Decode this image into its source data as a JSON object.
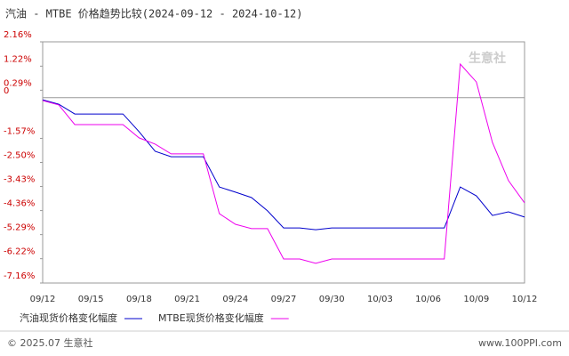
{
  "chart_data": {
    "type": "line",
    "title": "汽油 - MTBE 价格趋势比较(2024-09-12 - 2024-10-12)",
    "categories": [
      "09/12",
      null,
      null,
      "09/15",
      null,
      null,
      "09/18",
      null,
      null,
      "09/21",
      null,
      null,
      "09/24",
      null,
      null,
      "09/27",
      null,
      null,
      "09/30",
      null,
      null,
      "10/03",
      null,
      null,
      "10/06",
      null,
      null,
      "10/09",
      null,
      null,
      "10/12"
    ],
    "series": [
      {
        "name": "汽油现货价格变化幅度",
        "color": "#0000cc",
        "values": [
          -0.08,
          -0.25,
          -0.63,
          -0.63,
          -0.63,
          -0.63,
          -1.31,
          -2.07,
          -2.28,
          -2.28,
          -2.28,
          -3.45,
          -3.65,
          -3.86,
          -4.37,
          -5.03,
          -5.03,
          -5.1,
          -5.03,
          -5.03,
          -5.03,
          -5.03,
          -5.03,
          -5.03,
          -5.03,
          -5.03,
          -3.45,
          -3.79,
          -4.55,
          -4.41,
          -4.61
        ]
      },
      {
        "name": "MTBE现货价格变化幅度",
        "color": "#ee00ee",
        "values": [
          -0.11,
          -0.28,
          -1.04,
          -1.04,
          -1.04,
          -1.04,
          -1.55,
          -1.79,
          -2.17,
          -2.17,
          -2.17,
          -4.48,
          -4.89,
          -5.06,
          -5.06,
          -6.23,
          -6.23,
          -6.4,
          -6.23,
          -6.23,
          -6.23,
          -6.23,
          -6.23,
          -6.23,
          -6.23,
          -6.23,
          1.3,
          0.61,
          -1.73,
          -3.2,
          -4.06
        ]
      }
    ],
    "ylim": [
      -7.16,
      2.16
    ],
    "yticks": [
      {
        "value": 2.16,
        "label": "2.16%"
      },
      {
        "value": 1.22,
        "label": "1.22%"
      },
      {
        "value": 0.29,
        "label": "0.29%"
      },
      0,
      {
        "value": -1.57,
        "label": "-1.57%"
      },
      {
        "value": -2.5,
        "label": "-2.50%"
      },
      {
        "value": -3.43,
        "label": "-3.43%"
      },
      {
        "value": -4.36,
        "label": "-4.36%"
      },
      {
        "value": -5.29,
        "label": "-5.29%"
      },
      {
        "value": -6.22,
        "label": "-6.22%"
      },
      {
        "value": -7.16,
        "label": "-7.16%"
      }
    ],
    "watermark": "生意社",
    "footer_left": "© 2025.07 生意社",
    "footer_right": "www.100PPI.com"
  }
}
